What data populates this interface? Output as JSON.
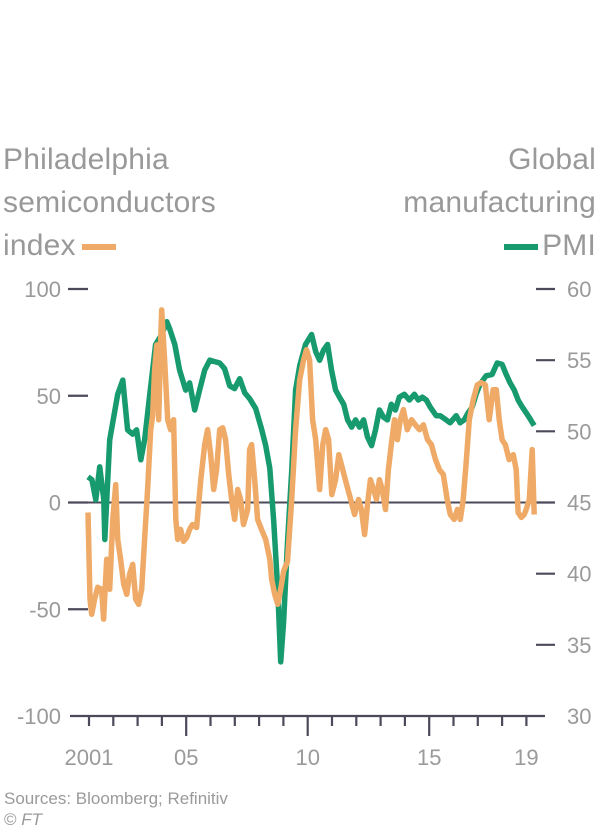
{
  "chart_data": {
    "type": "line",
    "title": "",
    "legend": [
      {
        "name": "Philadelphia semiconductors index",
        "axis": "left",
        "color": "#eeaa66"
      },
      {
        "name": "Global manufacturing PMI",
        "axis": "right",
        "color": "#179a6e"
      }
    ],
    "legend_labels": {
      "left_lines": [
        "Philadelphia",
        "semiconductors",
        "index"
      ],
      "right_lines": [
        "Global",
        "manufacturing",
        "PMI"
      ]
    },
    "xlabel": "",
    "ylabel_left": "",
    "ylabel_right": "",
    "xlim": [
      2001.0,
      2019.6
    ],
    "x_ticks_major": [
      {
        "year": 2001,
        "label": "2001"
      },
      {
        "year": 2005,
        "label": "05"
      },
      {
        "year": 2010,
        "label": "10"
      },
      {
        "year": 2015,
        "label": "15"
      },
      {
        "year": 2019,
        "label": "19"
      }
    ],
    "x_ticks_minor": [
      2001,
      2002,
      2003,
      2004,
      2006,
      2007,
      2008,
      2009,
      2011,
      2012,
      2013,
      2014,
      2016,
      2017,
      2018,
      2019
    ],
    "y_left": {
      "range": [
        -100,
        100
      ],
      "ticks": [
        100,
        50,
        0,
        -50,
        -100
      ]
    },
    "y_right": {
      "range": [
        30,
        60
      ],
      "ticks": [
        60,
        55,
        50,
        45,
        40,
        35,
        30
      ]
    },
    "zero_line": 0,
    "grid": false,
    "series": [
      {
        "name": "Philadelphia semiconductors index",
        "axis": "left",
        "color": "#eeaa66",
        "points": [
          [
            2000.96,
            -4.7
          ],
          [
            2001.04,
            -45.3
          ],
          [
            2001.11,
            -52.3
          ],
          [
            2001.23,
            -45.3
          ],
          [
            2001.36,
            -39.7
          ],
          [
            2001.52,
            -40.6
          ],
          [
            2001.6,
            -54.6
          ],
          [
            2001.73,
            -26.6
          ],
          [
            2001.85,
            -40.6
          ],
          [
            2001.98,
            -7.9
          ],
          [
            2002.1,
            8.4
          ],
          [
            2002.18,
            -17.3
          ],
          [
            2002.3,
            -26.6
          ],
          [
            2002.43,
            -38.3
          ],
          [
            2002.55,
            -43.0
          ],
          [
            2002.67,
            -33.6
          ],
          [
            2002.8,
            -29.0
          ],
          [
            2002.92,
            -45.3
          ],
          [
            2003.04,
            -47.7
          ],
          [
            2003.17,
            -40.6
          ],
          [
            2003.29,
            -17.3
          ],
          [
            2003.41,
            6.1
          ],
          [
            2003.54,
            34.1
          ],
          [
            2003.62,
            41.1
          ],
          [
            2003.7,
            62.2
          ],
          [
            2003.79,
            73.8
          ],
          [
            2003.87,
            38.8
          ],
          [
            2003.95,
            76.2
          ],
          [
            2003.99,
            90.2
          ],
          [
            2004.11,
            66.8
          ],
          [
            2004.24,
            38.8
          ],
          [
            2004.36,
            34.1
          ],
          [
            2004.48,
            38.8
          ],
          [
            2004.57,
            -7.9
          ],
          [
            2004.65,
            -17.3
          ],
          [
            2004.77,
            -12.6
          ],
          [
            2004.89,
            -18.2
          ],
          [
            2005.02,
            -16.4
          ],
          [
            2005.14,
            -12.6
          ],
          [
            2005.26,
            -10.3
          ],
          [
            2005.43,
            -11.7
          ],
          [
            2005.6,
            10.7
          ],
          [
            2005.76,
            27.1
          ],
          [
            2005.88,
            34.1
          ],
          [
            2006.01,
            22.4
          ],
          [
            2006.13,
            6.1
          ],
          [
            2006.25,
            15.4
          ],
          [
            2006.38,
            34.1
          ],
          [
            2006.5,
            35.0
          ],
          [
            2006.62,
            29.4
          ],
          [
            2006.75,
            13.1
          ],
          [
            2006.87,
            1.4
          ],
          [
            2006.99,
            -7.9
          ],
          [
            2007.12,
            6.1
          ],
          [
            2007.24,
            1.4
          ],
          [
            2007.36,
            -10.3
          ],
          [
            2007.53,
            -3.3
          ],
          [
            2007.61,
            24.8
          ],
          [
            2007.69,
            27.1
          ],
          [
            2007.82,
            10.7
          ],
          [
            2007.94,
            -7.9
          ],
          [
            2008.1,
            -12.6
          ],
          [
            2008.27,
            -17.3
          ],
          [
            2008.44,
            -26.6
          ],
          [
            2008.52,
            -36.0
          ],
          [
            2008.64,
            -43.0
          ],
          [
            2008.77,
            -47.7
          ],
          [
            2008.89,
            -40.6
          ],
          [
            2009.01,
            -32.2
          ],
          [
            2009.17,
            -27.6
          ],
          [
            2009.34,
            1.4
          ],
          [
            2009.5,
            34.1
          ],
          [
            2009.67,
            57.5
          ],
          [
            2009.83,
            66.8
          ],
          [
            2009.95,
            71.5
          ],
          [
            2010.08,
            66.8
          ],
          [
            2010.2,
            38.8
          ],
          [
            2010.33,
            29.4
          ],
          [
            2010.49,
            6.1
          ],
          [
            2010.62,
            27.1
          ],
          [
            2010.74,
            34.1
          ],
          [
            2010.86,
            29.4
          ],
          [
            2010.99,
            3.7
          ],
          [
            2011.15,
            10.7
          ],
          [
            2011.28,
            22.4
          ],
          [
            2011.44,
            15.4
          ],
          [
            2011.6,
            8.4
          ],
          [
            2011.77,
            1.4
          ],
          [
            2011.93,
            -5.6
          ],
          [
            2012.09,
            1.4
          ],
          [
            2012.21,
            -3.3
          ],
          [
            2012.34,
            -15.0
          ],
          [
            2012.46,
            -0.9
          ],
          [
            2012.58,
            10.7
          ],
          [
            2012.71,
            6.1
          ],
          [
            2012.83,
            1.4
          ],
          [
            2012.95,
            10.7
          ],
          [
            2013.07,
            6.1
          ],
          [
            2013.2,
            -3.3
          ],
          [
            2013.32,
            15.4
          ],
          [
            2013.44,
            27.1
          ],
          [
            2013.57,
            38.8
          ],
          [
            2013.69,
            29.4
          ],
          [
            2013.81,
            38.8
          ],
          [
            2013.94,
            43.5
          ],
          [
            2014.1,
            34.1
          ],
          [
            2014.27,
            38.8
          ],
          [
            2014.43,
            36.4
          ],
          [
            2014.6,
            34.1
          ],
          [
            2014.76,
            36.4
          ],
          [
            2014.93,
            29.4
          ],
          [
            2015.09,
            27.1
          ],
          [
            2015.26,
            20.1
          ],
          [
            2015.42,
            15.4
          ],
          [
            2015.58,
            13.1
          ],
          [
            2015.74,
            1.4
          ],
          [
            2015.87,
            -5.6
          ],
          [
            2016.03,
            -7.9
          ],
          [
            2016.16,
            -3.3
          ],
          [
            2016.28,
            -7.9
          ],
          [
            2016.4,
            1.4
          ],
          [
            2016.53,
            20.1
          ],
          [
            2016.65,
            38.8
          ],
          [
            2016.81,
            48.1
          ],
          [
            2016.98,
            55.1
          ],
          [
            2017.14,
            56.1
          ],
          [
            2017.31,
            55.1
          ],
          [
            2017.47,
            38.8
          ],
          [
            2017.63,
            52.8
          ],
          [
            2017.76,
            52.8
          ],
          [
            2017.88,
            38.8
          ],
          [
            2018.0,
            29.4
          ],
          [
            2018.13,
            27.1
          ],
          [
            2018.29,
            20.1
          ],
          [
            2018.46,
            22.4
          ],
          [
            2018.58,
            15.4
          ],
          [
            2018.66,
            -4.7
          ],
          [
            2018.79,
            -7.0
          ],
          [
            2018.91,
            -5.6
          ],
          [
            2018.99,
            -3.3
          ],
          [
            2019.12,
            1.4
          ],
          [
            2019.24,
            24.8
          ],
          [
            2019.32,
            -5.6
          ]
        ]
      },
      {
        "name": "Global manufacturing PMI",
        "axis": "right",
        "color": "#179a6e",
        "points": [
          [
            2000.96,
            46.8
          ],
          [
            2001.12,
            46.6
          ],
          [
            2001.28,
            45.2
          ],
          [
            2001.44,
            47.5
          ],
          [
            2001.61,
            45.2
          ],
          [
            2001.65,
            42.4
          ],
          [
            2001.85,
            49.4
          ],
          [
            2002.18,
            52.6
          ],
          [
            2002.39,
            53.6
          ],
          [
            2002.59,
            50.1
          ],
          [
            2002.8,
            49.8
          ],
          [
            2002.96,
            50.1
          ],
          [
            2003.13,
            48.0
          ],
          [
            2003.29,
            49.4
          ],
          [
            2003.5,
            52.6
          ],
          [
            2003.74,
            56.1
          ],
          [
            2003.99,
            56.8
          ],
          [
            2004.2,
            57.7
          ],
          [
            2004.32,
            57.2
          ],
          [
            2004.53,
            56.1
          ],
          [
            2004.73,
            54.3
          ],
          [
            2004.98,
            52.9
          ],
          [
            2005.14,
            53.4
          ],
          [
            2005.35,
            51.5
          ],
          [
            2005.55,
            52.9
          ],
          [
            2005.76,
            54.3
          ],
          [
            2005.97,
            55.0
          ],
          [
            2006.17,
            54.9
          ],
          [
            2006.38,
            54.8
          ],
          [
            2006.58,
            54.4
          ],
          [
            2006.79,
            53.2
          ],
          [
            2006.99,
            53.0
          ],
          [
            2007.2,
            53.7
          ],
          [
            2007.41,
            52.7
          ],
          [
            2007.61,
            52.3
          ],
          [
            2007.86,
            51.6
          ],
          [
            2008.11,
            50.1
          ],
          [
            2008.27,
            49.0
          ],
          [
            2008.44,
            47.4
          ],
          [
            2008.6,
            43.7
          ],
          [
            2008.77,
            38.8
          ],
          [
            2008.89,
            33.8
          ],
          [
            2009.01,
            36.6
          ],
          [
            2009.17,
            42.2
          ],
          [
            2009.34,
            47.2
          ],
          [
            2009.5,
            52.9
          ],
          [
            2009.67,
            54.6
          ],
          [
            2009.91,
            56.1
          ],
          [
            2010.16,
            56.8
          ],
          [
            2010.33,
            55.6
          ],
          [
            2010.49,
            55.0
          ],
          [
            2010.65,
            55.7
          ],
          [
            2010.82,
            56.1
          ],
          [
            2010.98,
            54.3
          ],
          [
            2011.15,
            52.9
          ],
          [
            2011.31,
            52.4
          ],
          [
            2011.48,
            51.9
          ],
          [
            2011.64,
            50.8
          ],
          [
            2011.81,
            50.3
          ],
          [
            2011.97,
            50.8
          ],
          [
            2012.13,
            50.3
          ],
          [
            2012.3,
            50.8
          ],
          [
            2012.46,
            49.6
          ],
          [
            2012.63,
            49.0
          ],
          [
            2012.79,
            50.1
          ],
          [
            2012.95,
            51.5
          ],
          [
            2013.12,
            51.0
          ],
          [
            2013.28,
            50.8
          ],
          [
            2013.44,
            51.9
          ],
          [
            2013.61,
            51.5
          ],
          [
            2013.77,
            52.4
          ],
          [
            2013.98,
            52.6
          ],
          [
            2014.18,
            52.2
          ],
          [
            2014.39,
            52.6
          ],
          [
            2014.55,
            52.2
          ],
          [
            2014.72,
            52.4
          ],
          [
            2014.88,
            52.2
          ],
          [
            2015.04,
            51.7
          ],
          [
            2015.29,
            51.1
          ],
          [
            2015.45,
            51.1
          ],
          [
            2015.7,
            50.8
          ],
          [
            2015.86,
            50.6
          ],
          [
            2016.11,
            51.1
          ],
          [
            2016.27,
            50.6
          ],
          [
            2016.44,
            50.8
          ],
          [
            2016.6,
            51.3
          ],
          [
            2016.77,
            51.7
          ],
          [
            2016.93,
            52.6
          ],
          [
            2017.09,
            53.3
          ],
          [
            2017.34,
            53.9
          ],
          [
            2017.59,
            54.0
          ],
          [
            2017.8,
            54.8
          ],
          [
            2018.0,
            54.7
          ],
          [
            2018.17,
            54.0
          ],
          [
            2018.33,
            53.4
          ],
          [
            2018.5,
            52.9
          ],
          [
            2018.66,
            52.2
          ],
          [
            2018.83,
            51.7
          ],
          [
            2019.07,
            51.1
          ],
          [
            2019.32,
            50.4
          ]
        ]
      }
    ]
  },
  "legend": {
    "left_lines": [
      "Philadelphia",
      "semiconductors",
      "index"
    ],
    "right_lines": [
      "Global",
      "manufacturing",
      "PMI"
    ]
  },
  "footer": {
    "source": "Sources: Bloomberg; Refinitiv",
    "copyright_symbol": "©",
    "copyright_owner": "FT"
  }
}
